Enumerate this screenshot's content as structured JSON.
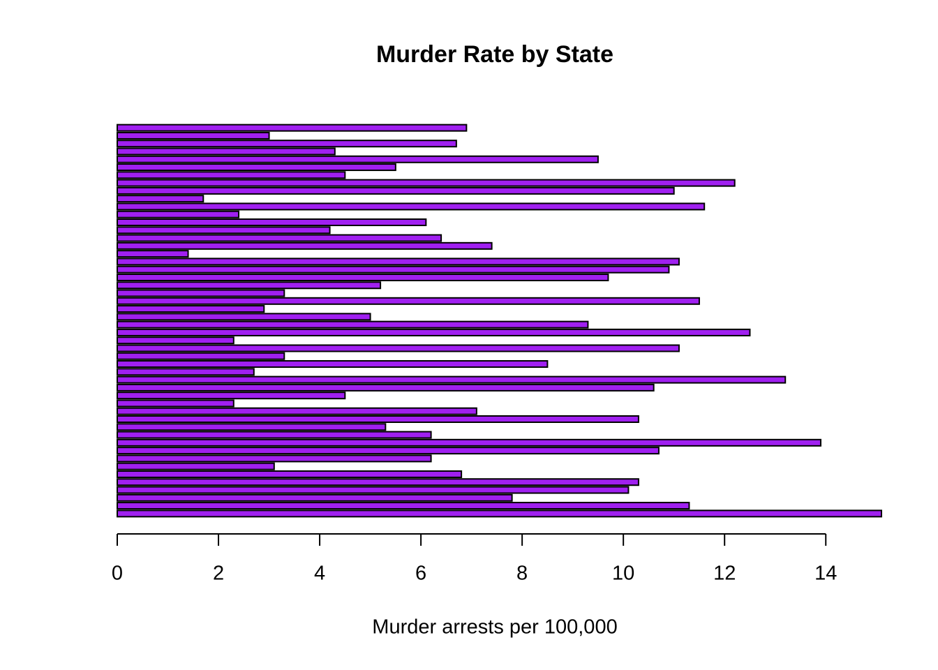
{
  "chart_data": {
    "type": "barh",
    "title": "Murder Rate by State",
    "x_label": "Murder arrests per 100,000",
    "categories": [
      null,
      null,
      null,
      null,
      null,
      null,
      null,
      null,
      null,
      null,
      null,
      null,
      null,
      null,
      null,
      null,
      null,
      null,
      null,
      null,
      null,
      null,
      null,
      null,
      null,
      null,
      null,
      null,
      null,
      null,
      null,
      null,
      null,
      null,
      null,
      null,
      null,
      null,
      null,
      null,
      null,
      null,
      null,
      null,
      null,
      null,
      null,
      null,
      null,
      null
    ],
    "values": [
      15.1,
      11.3,
      7.8,
      10.1,
      10.3,
      6.8,
      3.1,
      6.2,
      10.7,
      13.9,
      6.2,
      5.3,
      10.3,
      7.1,
      2.3,
      4.5,
      10.6,
      13.2,
      2.7,
      8.5,
      3.3,
      11.1,
      2.3,
      12.5,
      9.3,
      5.0,
      2.9,
      11.5,
      3.3,
      5.2,
      9.7,
      10.9,
      11.1,
      1.4,
      7.4,
      6.4,
      4.2,
      6.1,
      2.4,
      11.6,
      1.7,
      11.0,
      12.2,
      4.5,
      5.5,
      9.5,
      4.3,
      6.7,
      3.0,
      6.9
    ],
    "color": "#a020f0",
    "xlim": [
      0,
      15.1
    ],
    "xticks": [
      0,
      2,
      4,
      6,
      8,
      10,
      12,
      14
    ]
  }
}
